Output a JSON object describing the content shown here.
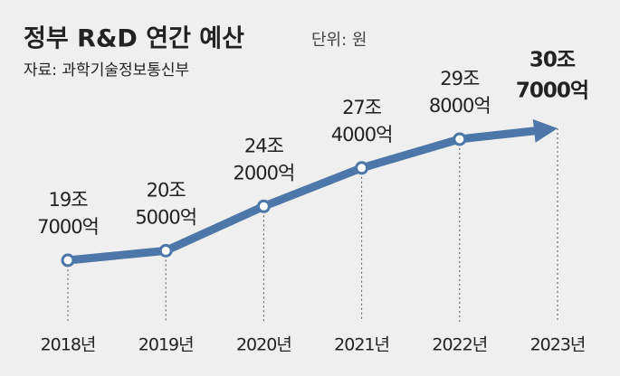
{
  "chart_data": {
    "type": "line",
    "title": "정부 R&D 연간 예산",
    "subtitle": "단위: 원",
    "source": "자료: 과학기술정보통신부",
    "categories": [
      "2018년",
      "2019년",
      "2020년",
      "2021년",
      "2022년",
      "2023년"
    ],
    "series": [
      {
        "name": "정부 R&D 예산",
        "color": "#4c77a8",
        "values": [
          19700000000000,
          20500000000000,
          24200000000000,
          27400000000000,
          29800000000000,
          30700000000000
        ],
        "value_labels": [
          [
            "19조",
            "7000억"
          ],
          [
            "20조",
            "5000억"
          ],
          [
            "24조",
            "2000억"
          ],
          [
            "27조",
            "4000억"
          ],
          [
            "29조",
            "8000억"
          ],
          [
            "30조",
            "7000억"
          ]
        ]
      }
    ]
  }
}
